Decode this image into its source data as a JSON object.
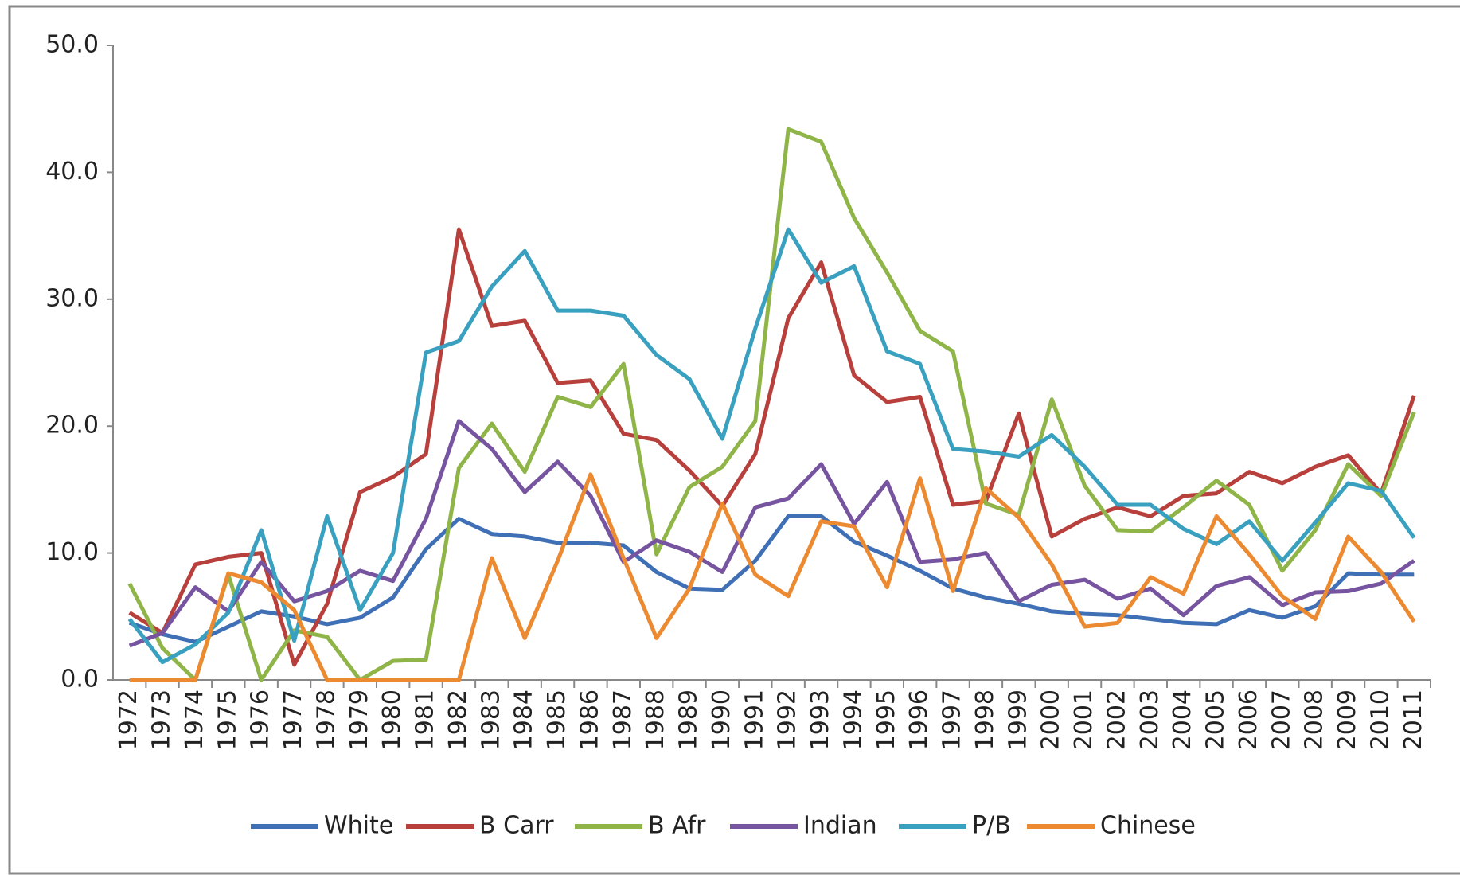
{
  "chart_data": {
    "type": "line",
    "categories": [
      "1972",
      "1973",
      "1974",
      "1975",
      "1976",
      "1977",
      "1978",
      "1979",
      "1980",
      "1981",
      "1982",
      "1983",
      "1984",
      "1985",
      "1986",
      "1987",
      "1988",
      "1989",
      "1990",
      "1991",
      "1992",
      "1993",
      "1994",
      "1995",
      "1996",
      "1997",
      "1998",
      "1999",
      "2000",
      "2001",
      "2002",
      "2003",
      "2004",
      "2005",
      "2006",
      "2007",
      "2008",
      "2009",
      "2010",
      "2011"
    ],
    "series": [
      {
        "name": "White",
        "color": "#3f6fb5",
        "values": [
          4.5,
          3.6,
          3.0,
          4.2,
          5.4,
          5.0,
          4.4,
          4.9,
          6.5,
          10.3,
          12.7,
          11.5,
          11.3,
          10.8,
          10.8,
          10.6,
          8.5,
          7.2,
          7.1,
          9.4,
          12.9,
          12.9,
          10.9,
          9.8,
          8.6,
          7.2,
          6.5,
          6.0,
          5.4,
          5.2,
          5.1,
          4.8,
          4.5,
          4.4,
          5.5,
          4.9,
          5.8,
          8.4,
          8.3,
          8.3
        ]
      },
      {
        "name": "B Carr",
        "color": "#b8403c",
        "values": [
          5.3,
          3.7,
          9.1,
          9.7,
          10.0,
          1.2,
          6.0,
          14.8,
          16.0,
          17.8,
          35.5,
          27.9,
          28.3,
          23.4,
          23.6,
          19.4,
          18.9,
          16.5,
          13.7,
          17.8,
          28.5,
          32.9,
          24.0,
          21.9,
          22.3,
          13.8,
          14.1,
          21.0,
          11.3,
          12.7,
          13.6,
          12.9,
          14.5,
          14.7,
          16.4,
          15.5,
          16.8,
          17.7,
          14.7,
          22.4
        ]
      },
      {
        "name": "B Afr",
        "color": "#8fb448",
        "values": [
          7.6,
          2.5,
          0,
          8.3,
          0,
          3.9,
          3.4,
          0,
          1.5,
          1.6,
          16.7,
          20.2,
          16.4,
          22.3,
          21.5,
          24.9,
          9.9,
          15.2,
          16.8,
          20.4,
          43.4,
          42.4,
          36.4,
          32.1,
          27.5,
          25.9,
          13.9,
          13.0,
          22.1,
          15.3,
          11.8,
          11.7,
          13.6,
          15.7,
          13.8,
          8.6,
          11.8,
          17.0,
          14.5,
          21.1
        ]
      },
      {
        "name": "Indian",
        "color": "#7754a0",
        "values": [
          2.7,
          3.7,
          7.3,
          5.4,
          9.3,
          6.2,
          7.0,
          8.6,
          7.8,
          12.7,
          20.4,
          18.2,
          14.8,
          17.2,
          14.5,
          9.3,
          11.0,
          10.1,
          8.5,
          13.6,
          14.3,
          17.0,
          12.3,
          15.6,
          9.3,
          9.5,
          10.0,
          6.2,
          7.5,
          7.9,
          6.4,
          7.2,
          5.1,
          7.4,
          8.1,
          5.9,
          6.9,
          7.0,
          7.6,
          9.4
        ]
      },
      {
        "name": "P/B",
        "color": "#3aa0bf",
        "values": [
          4.8,
          1.4,
          2.8,
          5.3,
          11.8,
          3.1,
          12.9,
          5.5,
          10.0,
          25.8,
          26.7,
          31.0,
          33.8,
          29.1,
          29.1,
          28.7,
          25.6,
          23.7,
          19.0,
          27.7,
          35.5,
          31.3,
          32.6,
          25.9,
          24.9,
          18.2,
          18.0,
          17.6,
          19.3,
          16.8,
          13.8,
          13.8,
          11.9,
          10.7,
          12.5,
          9.4,
          12.4,
          15.5,
          14.9,
          11.2
        ]
      },
      {
        "name": "Chinese",
        "color": "#ec8a32",
        "values": [
          0,
          0,
          0,
          8.4,
          7.7,
          5.5,
          0,
          0,
          0,
          0,
          0,
          9.6,
          3.3,
          9.4,
          16.2,
          9.6,
          3.3,
          7.2,
          13.9,
          8.3,
          6.6,
          12.5,
          12.1,
          7.3,
          15.9,
          7.0,
          15.1,
          12.8,
          9.1,
          4.2,
          4.5,
          8.1,
          6.8,
          12.9,
          9.9,
          6.6,
          4.8,
          11.3,
          8.5,
          4.6
        ]
      }
    ],
    "ylim": [
      0,
      50
    ],
    "yticks": [
      {
        "value": 0,
        "label": "0.0"
      },
      {
        "value": 10,
        "label": "10.0"
      },
      {
        "value": 20,
        "label": "20.0"
      },
      {
        "value": 30,
        "label": "30.0"
      },
      {
        "value": 40,
        "label": "40.0"
      },
      {
        "value": 50,
        "label": "50.0"
      }
    ],
    "grid": false,
    "legend": "bottom"
  }
}
